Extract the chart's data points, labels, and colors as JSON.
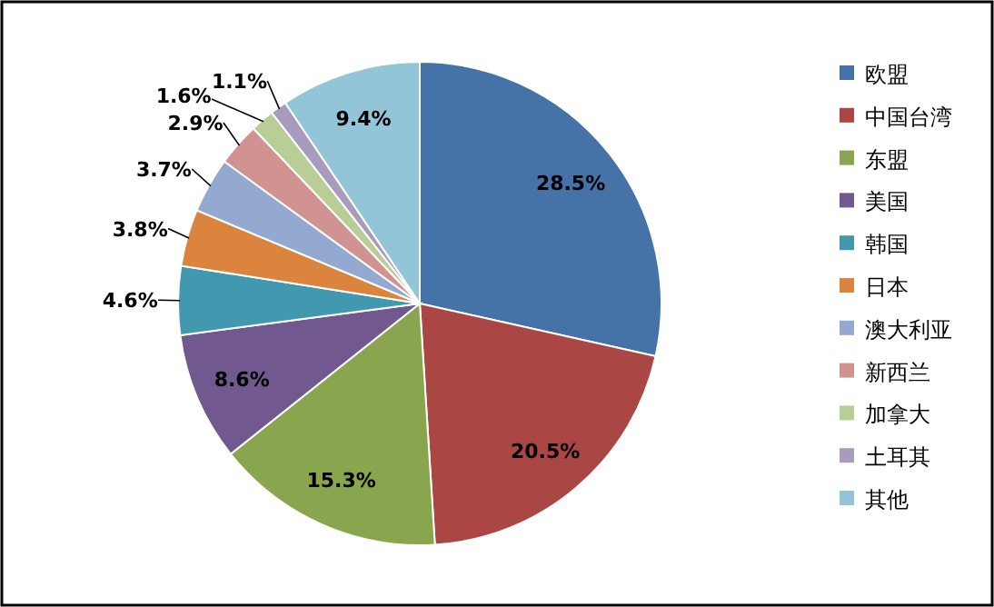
{
  "chart_data": {
    "type": "pie",
    "legend": "right",
    "categories": [
      "欧盟",
      "中国台湾",
      "东盟",
      "美国",
      "韩国",
      "日本",
      "澳大利亚",
      "新西兰",
      "加拿大",
      "土耳其",
      "其他"
    ],
    "values": [
      28.5,
      20.5,
      15.3,
      8.6,
      4.6,
      3.8,
      3.7,
      2.9,
      1.6,
      1.1,
      9.4
    ],
    "colors": [
      "#4572a7",
      "#aa4643",
      "#89a54e",
      "#71588f",
      "#4198af",
      "#db843d",
      "#93a9cf",
      "#d19392",
      "#b9cd96",
      "#a99bbd",
      "#92c5d8"
    ],
    "value_labels": [
      "28.5%",
      "20.5%",
      "15.3%",
      "8.6%",
      "4.6%",
      "3.8%",
      "3.7%",
      "2.9%",
      "1.6%",
      "1.1%",
      "9.4%"
    ]
  }
}
